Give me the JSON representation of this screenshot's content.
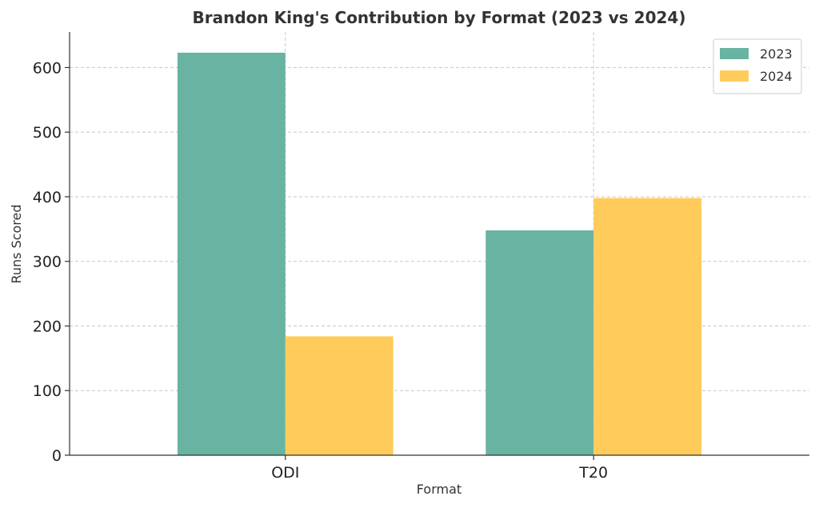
{
  "chart_data": {
    "type": "bar",
    "title": "Brandon King's Contribution by Format (2023 vs 2024)",
    "xlabel": "Format",
    "ylabel": "Runs Scored",
    "categories": [
      "ODI",
      "T20"
    ],
    "series": [
      {
        "name": "2023",
        "values": [
          623,
          348
        ],
        "color": "#69b3a2"
      },
      {
        "name": "2024",
        "values": [
          184,
          398
        ],
        "color": "#ffcc5c"
      }
    ],
    "ylim": [
      0,
      655
    ],
    "yticks": [
      0,
      100,
      200,
      300,
      400,
      500,
      600
    ],
    "grid": true,
    "legend_position": "top-right"
  }
}
